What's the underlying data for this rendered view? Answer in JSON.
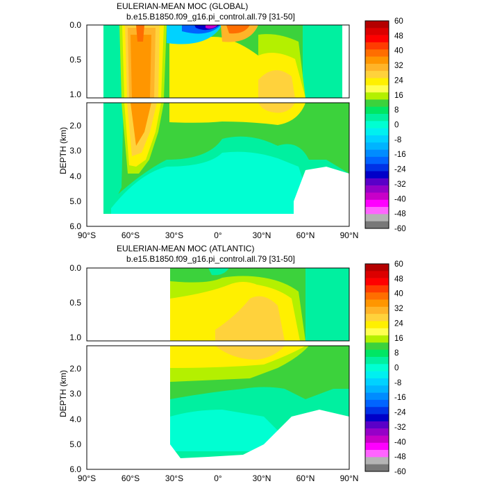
{
  "chart_data": [
    {
      "type": "contour",
      "title": "EULERIAN-MEAN MOC (GLOBAL)",
      "subtitle": "b.e15.B1850.f09_g16.pi_control.all.79 [31-50]",
      "ylabel": "DEPTH (km)",
      "x_ticks": [
        "90°S",
        "60°S",
        "30°S",
        "0°",
        "30°N",
        "60°N",
        "90°N"
      ],
      "xlim": [
        -90,
        90
      ],
      "upper_ylim": [
        1.05,
        0.0
      ],
      "lower_ylim": [
        6.0,
        1.05
      ],
      "upper_y_ticks": [
        "0.0",
        "0.5",
        "1.0"
      ],
      "lower_y_ticks": [
        "2.0",
        "3.0",
        "4.0",
        "5.0",
        "6.0"
      ],
      "features": {
        "southern_cell": {
          "lat": -46,
          "depth_km": 0.6,
          "value": 34
        },
        "deacon_cell_south": {
          "lat": -55,
          "depth_km": 0.05,
          "value": 44
        },
        "tropical_negative": {
          "lat": -8,
          "depth_km": 0.03,
          "value": -60
        },
        "tropical_positive": {
          "lat": 12,
          "depth_km": 0.05,
          "value": 36
        },
        "northern_upper_cell": {
          "lat": 36,
          "depth_km": 1.1,
          "value": 20
        },
        "abyssal_cell": {
          "lat": 0,
          "depth_km": 4.6,
          "value": -4
        }
      }
    },
    {
      "type": "contour",
      "title": "EULERIAN-MEAN MOC (ATLANTIC)",
      "subtitle": "b.e15.B1850.f09_g16.pi_control.all.79 [31-50]",
      "ylabel": "DEPTH (km)",
      "x_ticks": [
        "90°S",
        "60°S",
        "30°S",
        "0°",
        "30°N",
        "60°N",
        "90°N"
      ],
      "xlim": [
        -90,
        90
      ],
      "upper_ylim": [
        1.05,
        0.0
      ],
      "lower_ylim": [
        6.0,
        1.05
      ],
      "upper_y_ticks": [
        "0.0",
        "0.5",
        "1.0"
      ],
      "lower_y_ticks": [
        "2.0",
        "3.0",
        "4.0",
        "5.0",
        "6.0"
      ],
      "data_start_lat": -33,
      "features": {
        "amoc_cell": {
          "lat": 36,
          "depth_km": 1.0,
          "value": 20
        },
        "surface_wind_cells": {
          "lat": 0,
          "depth_km": 0.05,
          "value": 8
        },
        "abyssal_cell": {
          "lat": -10,
          "depth_km": 4.6,
          "value": -4
        }
      }
    }
  ],
  "colorbar": {
    "labels": [
      "60",
      "48",
      "40",
      "32",
      "24",
      "16",
      "8",
      "0",
      "-8",
      "-16",
      "-24",
      "-32",
      "-40",
      "-48",
      "-60"
    ],
    "colors": [
      "#b40000",
      "#dc0000",
      "#ff0000",
      "#ff3c00",
      "#ff6e00",
      "#ff9600",
      "#ffb428",
      "#ffd23c",
      "#fff000",
      "#ffff50",
      "#b4f000",
      "#3cd23c",
      "#00e664",
      "#00f0a0",
      "#00ffd2",
      "#00f0f0",
      "#00d2ff",
      "#00b4ff",
      "#008cff",
      "#0064ff",
      "#0032e6",
      "#0000c8",
      "#5a00c8",
      "#9600c8",
      "#c800c8",
      "#ff00ff",
      "#ff64ff",
      "#b4b4b4",
      "#787878"
    ]
  }
}
